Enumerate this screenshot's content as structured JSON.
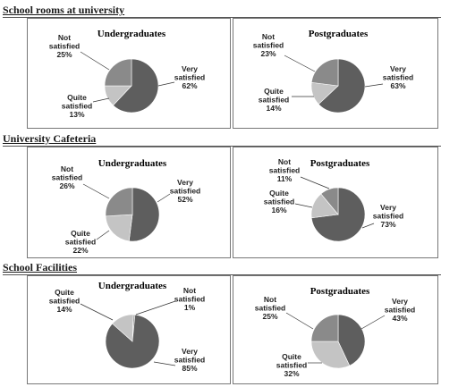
{
  "sections": [
    {
      "title": "School rooms at university"
    },
    {
      "title": "University Cafeteria"
    },
    {
      "title": "School Facilities"
    }
  ],
  "colors": {
    "very": "#5e5e5e",
    "quite": "#c4c4c4",
    "not": "#8a8a8a"
  },
  "chart_data": [
    {
      "type": "pie",
      "title": "Undergraduates",
      "section": "School rooms at university",
      "slices": [
        {
          "label": "Very satisfied",
          "value": 62
        },
        {
          "label": "Quite satisfied",
          "value": 13
        },
        {
          "label": "Not satisfied",
          "value": 25
        }
      ]
    },
    {
      "type": "pie",
      "title": "Postgraduates",
      "section": "School rooms at university",
      "slices": [
        {
          "label": "Very satisfied",
          "value": 63
        },
        {
          "label": "Quite satisfied",
          "value": 14
        },
        {
          "label": "Not satisfied",
          "value": 23
        }
      ]
    },
    {
      "type": "pie",
      "title": "Undergraduates",
      "section": "University Cafeteria",
      "slices": [
        {
          "label": "Very satisfied",
          "value": 52
        },
        {
          "label": "Quite satisfied",
          "value": 22
        },
        {
          "label": "Not satisfied",
          "value": 26
        }
      ]
    },
    {
      "type": "pie",
      "title": "Postgraduates",
      "section": "University Cafeteria",
      "slices": [
        {
          "label": "Very satisfied",
          "value": 73
        },
        {
          "label": "Quite satisfied",
          "value": 16
        },
        {
          "label": "Not satisfied",
          "value": 11
        }
      ]
    },
    {
      "type": "pie",
      "title": "Undergraduates",
      "section": "School Facilities",
      "slices": [
        {
          "label": "Very satisfied",
          "value": 85
        },
        {
          "label": "Quite satisfied",
          "value": 14
        },
        {
          "label": "Not satisfied",
          "value": 1
        }
      ]
    },
    {
      "type": "pie",
      "title": "Postgraduates",
      "section": "School Facilities",
      "slices": [
        {
          "label": "Very satisfied",
          "value": 43
        },
        {
          "label": "Quite satisfied",
          "value": 32
        },
        {
          "label": "Not satisfied",
          "value": 25
        }
      ]
    }
  ]
}
